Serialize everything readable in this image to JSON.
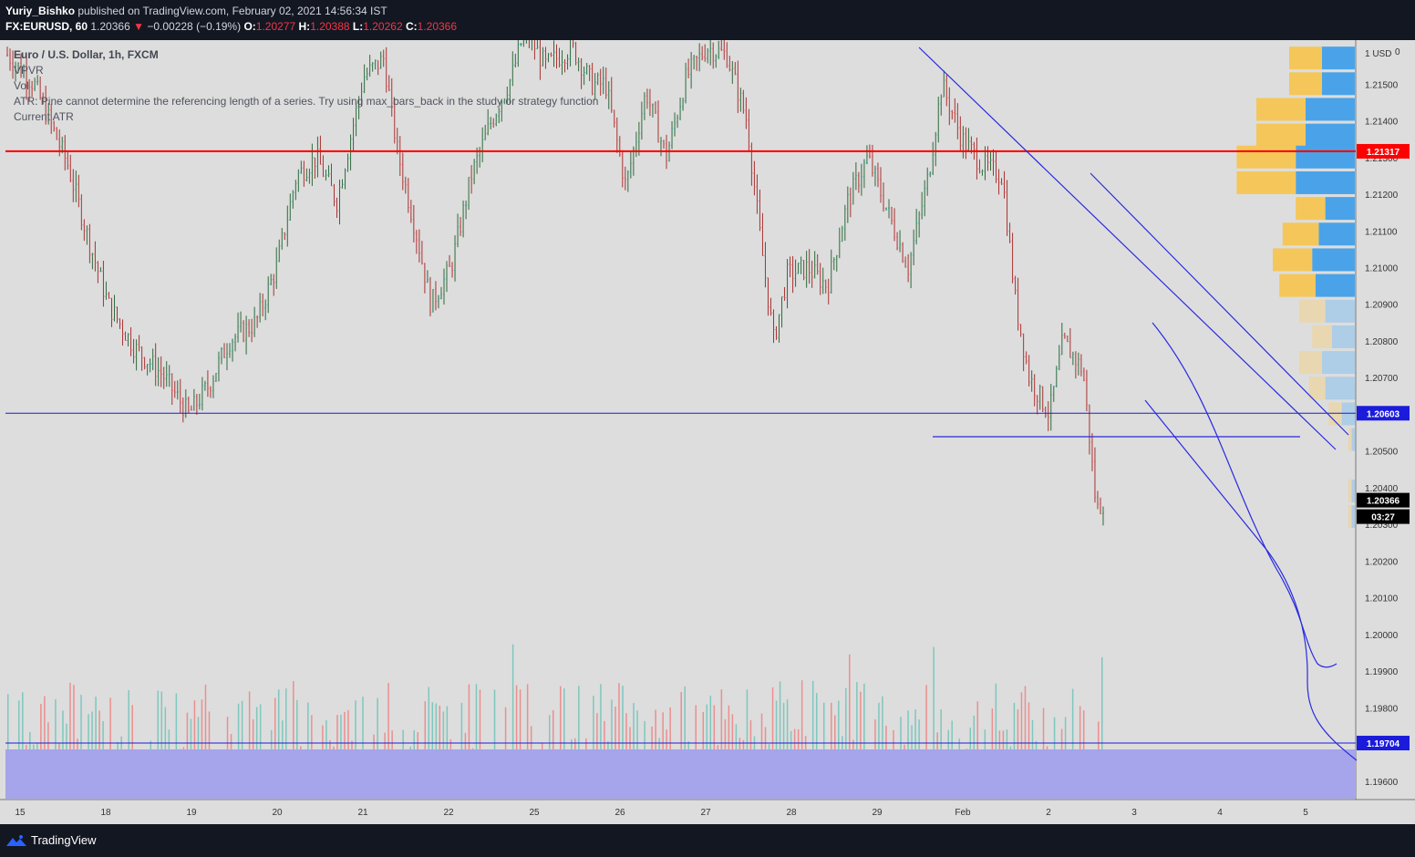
{
  "header": {
    "author": "Yuriy_Bishko",
    "published_text": "published on TradingView.com, February 02, 2021 14:56:34 IST",
    "symbol": "FX:EURUSD, 60",
    "last": "1.20366",
    "change": "−0.00228 (−0.19%)",
    "o_label": "O:",
    "o_value": "1.20277",
    "h_label": "H:",
    "h_value": "1.20388",
    "l_label": "L:",
    "l_value": "1.20262",
    "c_label": "C:",
    "c_value": "1.20366"
  },
  "legend": {
    "title": "Euro / U.S. Dollar, 1h, FXCM",
    "line_vpvr": "VPVR",
    "line_vol": "Vol",
    "line_atr": "ATR: Pine cannot determine the referencing length of a series. Try using max_bars_back in the study or strategy function",
    "line_current": "Current ATR"
  },
  "price_axis": {
    "currency": "1 USD",
    "corner_mark": "0",
    "ticks": [
      "1.21500",
      "1.21400",
      "1.21300",
      "1.21200",
      "1.21100",
      "1.21000",
      "1.20900",
      "1.20800",
      "1.20700",
      "1.20600",
      "1.20500",
      "1.20400",
      "1.20300",
      "1.20200",
      "1.20100",
      "1.20000",
      "1.19900",
      "1.19800",
      "1.19700",
      "1.19600"
    ],
    "badges": {
      "red_level": "1.21317",
      "blue_level": "1.20603",
      "last_price": "1.20366",
      "countdown": "03:27",
      "bottom_level": "1.19704"
    }
  },
  "time_axis": {
    "labels": [
      "15",
      "18",
      "19",
      "20",
      "21",
      "22",
      "25",
      "26",
      "27",
      "28",
      "29",
      "Feb",
      "2",
      "3",
      "4",
      "5"
    ]
  },
  "footer": {
    "brand": "TradingView"
  },
  "colors": {
    "background": "#131722",
    "chart_bg": "#dddddd",
    "bull": "#26a69a",
    "bear": "#ef5350",
    "red_line": "#ff0000",
    "blue_line": "#1b1bdb",
    "vpvr_up": "#f5c75a",
    "vpvr_down": "#4aa3e8"
  },
  "chart_data": {
    "type": "candlestick",
    "title": "Euro / U.S. Dollar, 1h, FXCM",
    "ylim": [
      1.1955,
      1.2162
    ],
    "horizontal_levels": [
      {
        "price": 1.21317,
        "color": "red"
      },
      {
        "price": 1.20603,
        "color": "blue"
      },
      {
        "price": 1.19704,
        "color": "blue"
      }
    ],
    "last": {
      "open": 1.20277,
      "high": 1.20388,
      "low": 1.20262,
      "close": 1.20366
    },
    "close_path": [
      {
        "x": 0.0,
        "y": 1.2158
      },
      {
        "x": 0.02,
        "y": 1.215
      },
      {
        "x": 0.045,
        "y": 1.2128
      },
      {
        "x": 0.06,
        "y": 1.2108
      },
      {
        "x": 0.075,
        "y": 1.209
      },
      {
        "x": 0.095,
        "y": 1.2078
      },
      {
        "x": 0.115,
        "y": 1.2071
      },
      {
        "x": 0.135,
        "y": 1.206
      },
      {
        "x": 0.15,
        "y": 1.2068
      },
      {
        "x": 0.165,
        "y": 1.208
      },
      {
        "x": 0.185,
        "y": 1.2085
      },
      {
        "x": 0.2,
        "y": 1.21
      },
      {
        "x": 0.215,
        "y": 1.2125
      },
      {
        "x": 0.23,
        "y": 1.213
      },
      {
        "x": 0.245,
        "y": 1.2118
      },
      {
        "x": 0.265,
        "y": 1.2152
      },
      {
        "x": 0.28,
        "y": 1.2157
      },
      {
        "x": 0.29,
        "y": 1.2132
      },
      {
        "x": 0.305,
        "y": 1.2108
      },
      {
        "x": 0.315,
        "y": 1.209
      },
      {
        "x": 0.33,
        "y": 1.21
      },
      {
        "x": 0.345,
        "y": 1.2125
      },
      {
        "x": 0.36,
        "y": 1.214
      },
      {
        "x": 0.375,
        "y": 1.2152
      },
      {
        "x": 0.385,
        "y": 1.2165
      },
      {
        "x": 0.4,
        "y": 1.2155
      },
      {
        "x": 0.42,
        "y": 1.216
      },
      {
        "x": 0.435,
        "y": 1.215
      },
      {
        "x": 0.445,
        "y": 1.215
      },
      {
        "x": 0.46,
        "y": 1.2122
      },
      {
        "x": 0.475,
        "y": 1.2148
      },
      {
        "x": 0.49,
        "y": 1.213
      },
      {
        "x": 0.505,
        "y": 1.2152
      },
      {
        "x": 0.52,
        "y": 1.216
      },
      {
        "x": 0.535,
        "y": 1.2158
      },
      {
        "x": 0.55,
        "y": 1.214
      },
      {
        "x": 0.56,
        "y": 1.2108
      },
      {
        "x": 0.57,
        "y": 1.208
      },
      {
        "x": 0.58,
        "y": 1.2098
      },
      {
        "x": 0.595,
        "y": 1.21
      },
      {
        "x": 0.61,
        "y": 1.2095
      },
      {
        "x": 0.625,
        "y": 1.2118
      },
      {
        "x": 0.64,
        "y": 1.213
      },
      {
        "x": 0.655,
        "y": 1.2115
      },
      {
        "x": 0.67,
        "y": 1.21
      },
      {
        "x": 0.685,
        "y": 1.2125
      },
      {
        "x": 0.695,
        "y": 1.215
      },
      {
        "x": 0.71,
        "y": 1.2135
      },
      {
        "x": 0.725,
        "y": 1.2128
      },
      {
        "x": 0.74,
        "y": 1.2125
      },
      {
        "x": 0.75,
        "y": 1.209
      },
      {
        "x": 0.76,
        "y": 1.207
      },
      {
        "x": 0.775,
        "y": 1.206
      },
      {
        "x": 0.785,
        "y": 1.208
      },
      {
        "x": 0.8,
        "y": 1.2072
      },
      {
        "x": 0.81,
        "y": 1.2034
      },
      {
        "x": 0.815,
        "y": 1.2036
      }
    ],
    "volume_profile_rows": [
      {
        "price": 1.2157,
        "up": 0.1,
        "down": 0.1
      },
      {
        "price": 1.215,
        "up": 0.1,
        "down": 0.1
      },
      {
        "price": 1.2143,
        "up": 0.15,
        "down": 0.15
      },
      {
        "price": 1.2136,
        "up": 0.15,
        "down": 0.15
      },
      {
        "price": 1.213,
        "up": 0.18,
        "down": 0.18
      },
      {
        "price": 1.2123,
        "up": 0.18,
        "down": 0.18
      },
      {
        "price": 1.2116,
        "up": 0.09,
        "down": 0.09
      },
      {
        "price": 1.2109,
        "up": 0.11,
        "down": 0.11
      },
      {
        "price": 1.2102,
        "up": 0.12,
        "down": 0.13
      },
      {
        "price": 1.2095,
        "up": 0.11,
        "down": 0.12
      },
      {
        "price": 1.2088,
        "up": 0.08,
        "down": 0.09
      },
      {
        "price": 1.2081,
        "up": 0.06,
        "down": 0.07
      },
      {
        "price": 1.2074,
        "up": 0.07,
        "down": 0.1
      },
      {
        "price": 1.2067,
        "up": 0.05,
        "down": 0.09
      },
      {
        "price": 1.206,
        "up": 0.04,
        "down": 0.04
      },
      {
        "price": 1.2053,
        "up": 0.01,
        "down": 0.01
      },
      {
        "price": 1.2039,
        "up": 0.01,
        "down": 0.01
      },
      {
        "price": 1.2032,
        "up": 0.01,
        "down": 0.01
      }
    ]
  }
}
